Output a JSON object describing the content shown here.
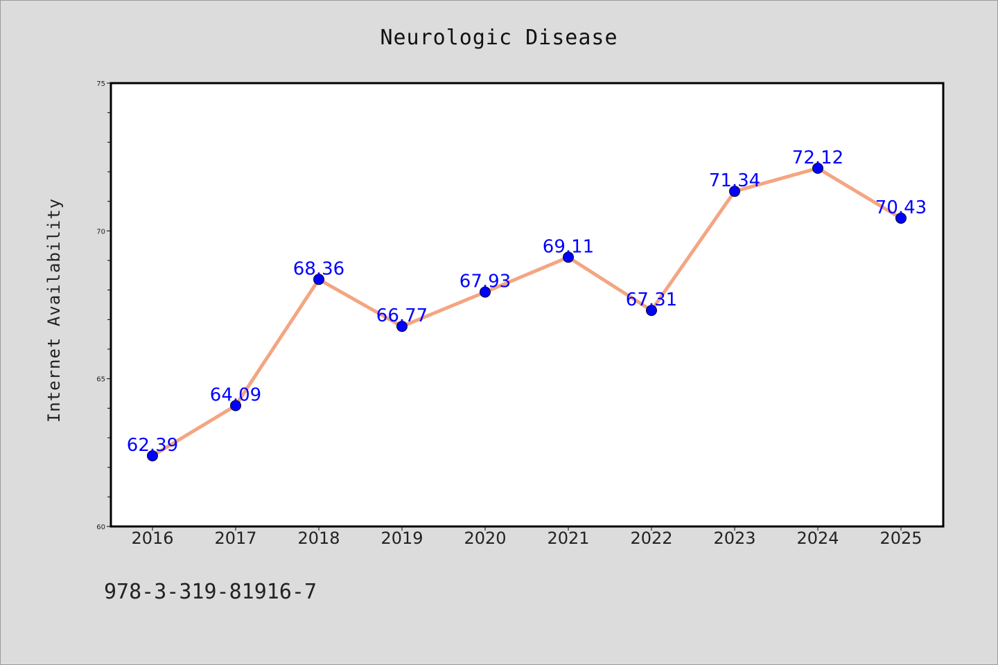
{
  "chart_data": {
    "type": "line",
    "title": "Neurologic Disease",
    "xlabel": "",
    "ylabel": "Internet Availability",
    "categories": [
      "2016",
      "2017",
      "2018",
      "2019",
      "2020",
      "2021",
      "2022",
      "2023",
      "2024",
      "2025"
    ],
    "series": [
      {
        "values": [
          62.39,
          64.09,
          68.36,
          66.77,
          67.93,
          69.11,
          67.31,
          71.34,
          72.12,
          70.43
        ],
        "labels": [
          "62.39",
          "64.09",
          "68.36",
          "66.77",
          "67.93",
          "69.11",
          "67.31",
          "71.34",
          "72.12",
          "70.43"
        ],
        "line_color": "#f4a582",
        "marker_color": "#0000ff",
        "label_color": "#0000ff"
      }
    ],
    "ylim": [
      60,
      75
    ],
    "yticks": [
      "60",
      "65",
      "70",
      "75"
    ],
    "grid": false,
    "legend": "none"
  },
  "footnote": "978-3-319-81916-7",
  "colors": {
    "background": "#dcdcdc",
    "plot_background": "#ffffff"
  }
}
